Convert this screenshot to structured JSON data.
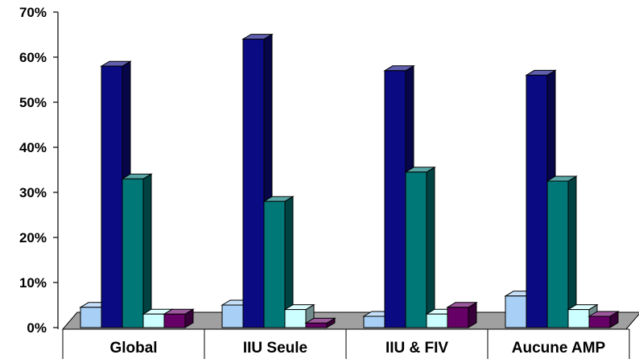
{
  "chart_data": {
    "type": "bar",
    "title": "",
    "xlabel": "",
    "ylabel": "",
    "categories": [
      "Global",
      "IIU Seule",
      "IIU & FIV",
      "Aucune AMP"
    ],
    "ylim": [
      0,
      70
    ],
    "y_ticks": [
      "0%",
      "10%",
      "20%",
      "30%",
      "40%",
      "50%",
      "60%",
      "70%"
    ],
    "y_tick_values": [
      0,
      10,
      20,
      30,
      40,
      50,
      60,
      70
    ],
    "legend": "none",
    "grid": false,
    "style": "3d-columns",
    "series": [
      {
        "values": [
          4.5,
          5,
          2.5,
          7
        ],
        "color": "#a8cff5"
      },
      {
        "values": [
          58,
          64,
          57,
          56
        ],
        "color": "#0a0a82"
      },
      {
        "values": [
          33,
          28,
          34.5,
          32.5
        ],
        "color": "#007878"
      },
      {
        "values": [
          3,
          4,
          3,
          4
        ],
        "color": "#ccffff"
      },
      {
        "values": [
          3,
          1,
          4.5,
          2.5
        ],
        "color": "#660066"
      }
    ],
    "floor_color": "#a0a0a0"
  }
}
